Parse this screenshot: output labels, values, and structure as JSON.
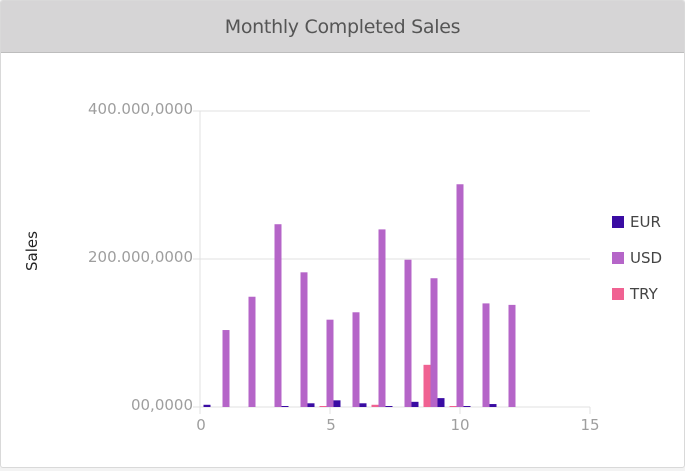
{
  "header": {
    "title": "Monthly Completed Sales"
  },
  "colors": {
    "EUR": "#3a0ca3",
    "USD": "#b565c8",
    "TRY": "#f06292",
    "grid": "#e0e0e0",
    "tick": "#9e9e9e"
  },
  "legend": [
    {
      "label": "EUR",
      "color": "#3a0ca3"
    },
    {
      "label": "USD",
      "color": "#b565c8"
    },
    {
      "label": "TRY",
      "color": "#f06292"
    }
  ],
  "axes": {
    "ylabel": "Sales",
    "yticks": [
      "400.000,0000",
      "200.000,0000",
      "00,0000"
    ],
    "xticks": [
      "0",
      "5",
      "10",
      "15"
    ]
  },
  "chart_data": {
    "type": "bar",
    "title": "Monthly Completed Sales",
    "xlabel": "",
    "ylabel": "Sales",
    "xlim": [
      0,
      15
    ],
    "ylim": [
      0,
      400000000
    ],
    "grid": true,
    "legend_position": "right",
    "x": [
      0,
      1,
      2,
      3,
      4,
      5,
      6,
      7,
      8,
      9,
      10,
      11,
      12
    ],
    "series": [
      {
        "name": "EUR",
        "color": "#3a0ca3",
        "values": [
          3000000,
          0,
          0,
          1000000,
          5000000,
          9000000,
          5000000,
          1000000,
          7000000,
          12000000,
          1000000,
          4000000,
          0
        ]
      },
      {
        "name": "USD",
        "color": "#b565c8",
        "values": [
          0,
          104000000,
          149000000,
          247000000,
          182000000,
          118000000,
          128000000,
          240000000,
          199000000,
          174000000,
          301000000,
          140000000,
          138000000
        ]
      },
      {
        "name": "TRY",
        "color": "#f06292",
        "values": [
          0,
          0,
          0,
          0,
          0,
          1000000,
          0,
          3000000,
          0,
          57000000,
          1000000,
          0,
          0
        ]
      }
    ],
    "yticks": [
      "00,0000",
      "200.000,0000",
      "400.000,0000"
    ],
    "xticks": [
      0,
      5,
      10,
      15
    ]
  }
}
